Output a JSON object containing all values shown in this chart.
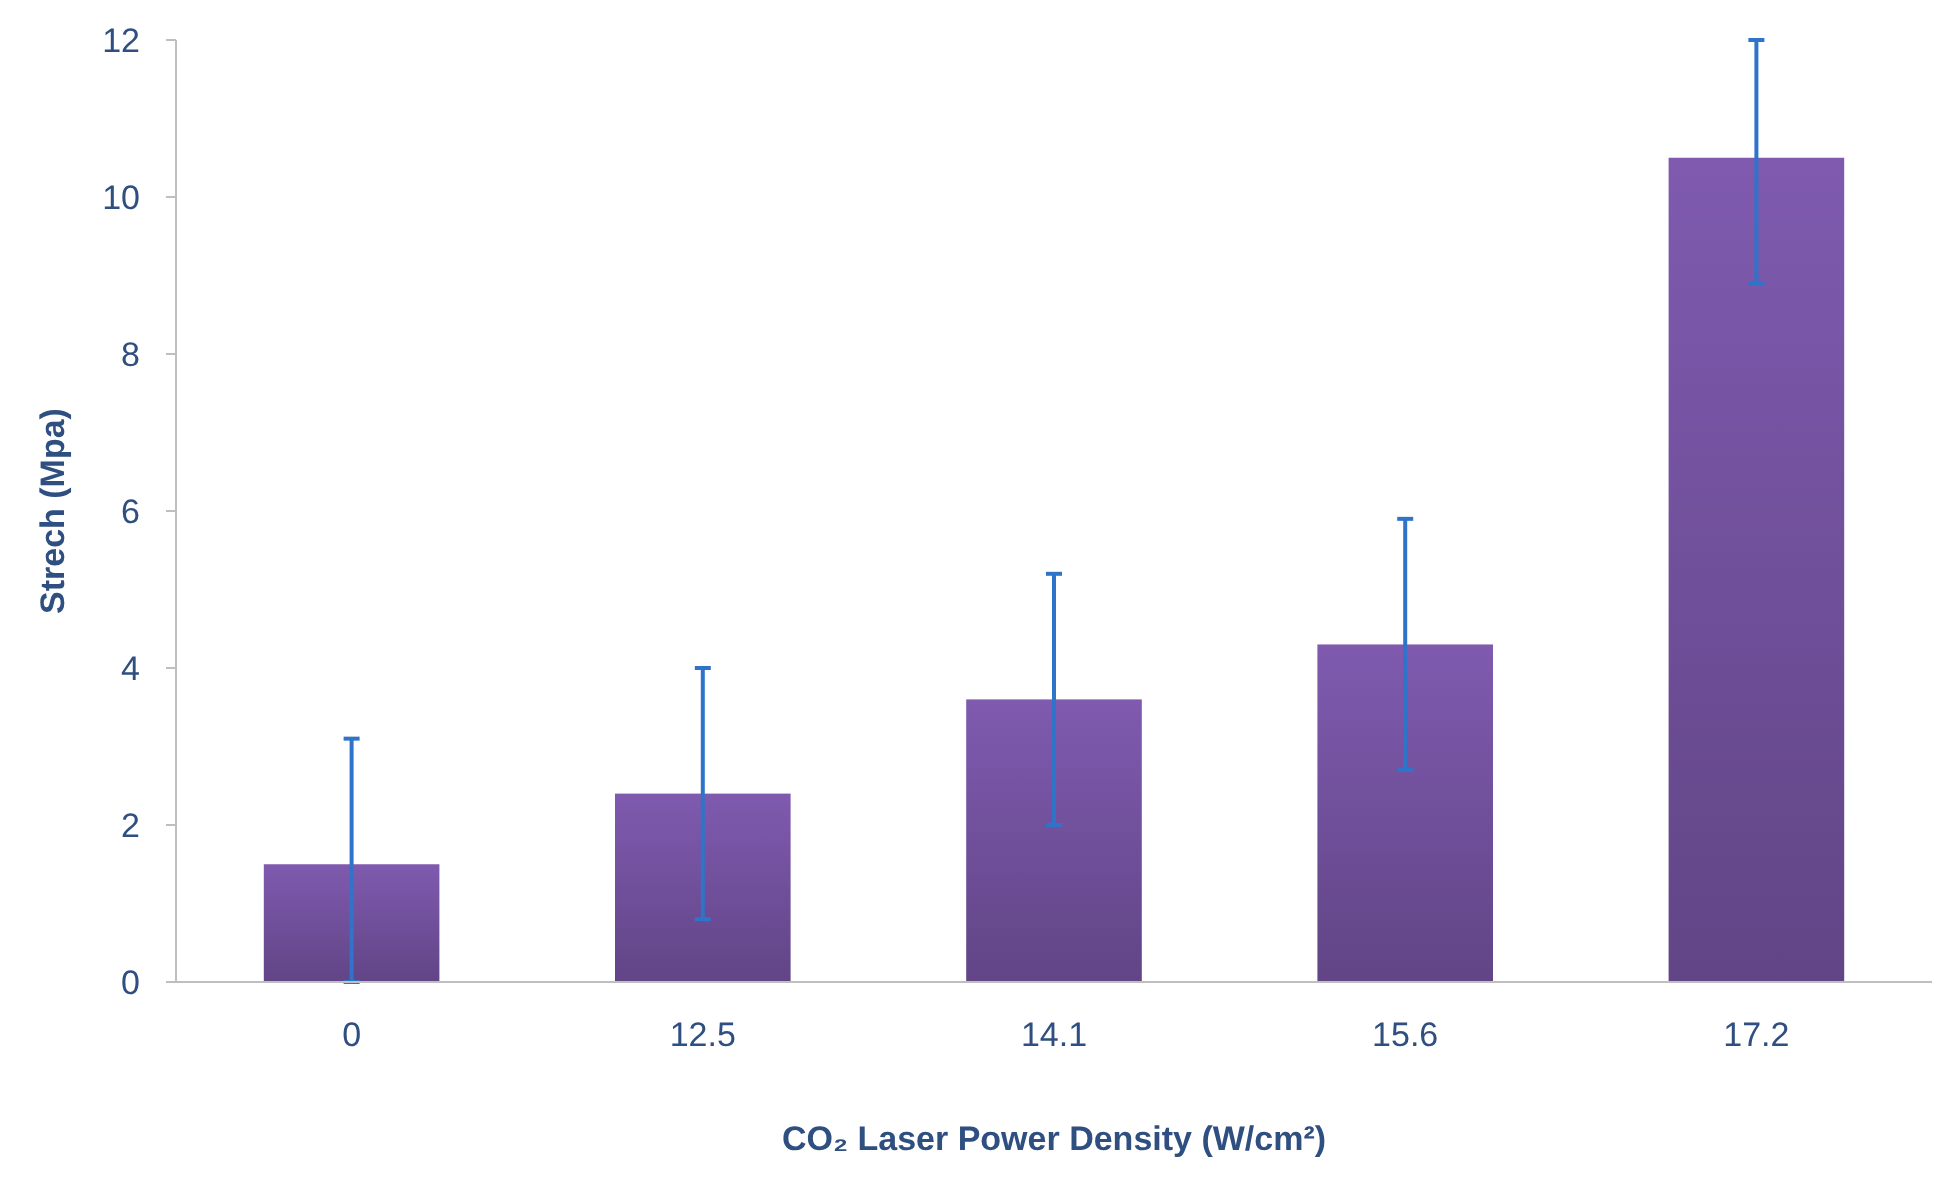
{
  "chart_data": {
    "type": "bar",
    "xlabel": "CO₂ Laser Power Density (W/cm²)",
    "ylabel": "Strech (Mpa)",
    "categories": [
      "0",
      "12.5",
      "14.1",
      "15.6",
      "17.2"
    ],
    "values": [
      1.5,
      2.4,
      3.6,
      4.3,
      10.5
    ],
    "errors": [
      [
        0,
        3.1
      ],
      [
        0.8,
        4.0
      ],
      [
        2.0,
        5.2
      ],
      [
        2.7,
        5.9
      ],
      [
        8.9,
        12
      ]
    ],
    "color": "#7452a0",
    "ylim": [
      0,
      12
    ],
    "yticks": [
      0,
      2,
      4,
      6,
      8,
      10,
      12
    ],
    "grid": false
  }
}
